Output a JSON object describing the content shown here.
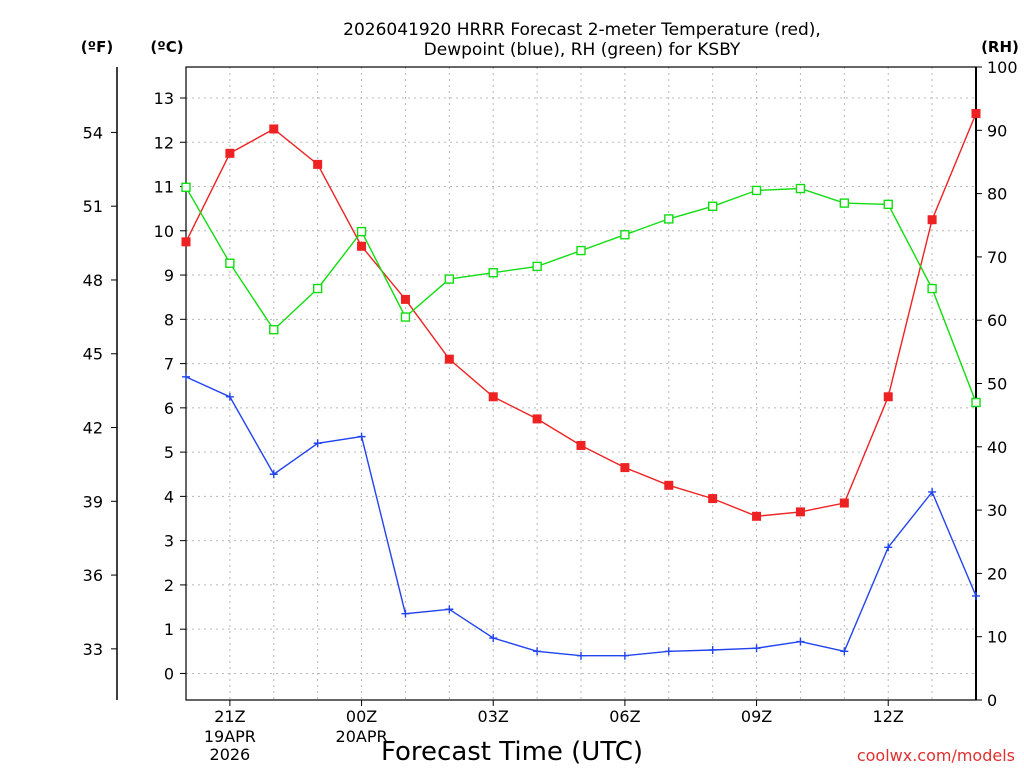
{
  "chart_data": {
    "type": "line",
    "title": [
      "2026041920 HRRR Forecast 2-meter Temperature (red),",
      "Dewpoint (blue), RH (green) for KSBY"
    ],
    "xlabel": "Forecast Time (UTC)",
    "credit": "coolwx.com/models",
    "units": {
      "fahrenheit": "(ºF)",
      "celsius": "(ºC)",
      "rh": "(RH)"
    },
    "x_range": [
      20,
      38
    ],
    "x_ticks": [
      {
        "x": 21,
        "label": "21Z",
        "sub": [
          "19APR",
          "2026"
        ]
      },
      {
        "x": 24,
        "label": "00Z",
        "sub": [
          "20APR"
        ]
      },
      {
        "x": 27,
        "label": "03Z",
        "sub": []
      },
      {
        "x": 30,
        "label": "06Z",
        "sub": []
      },
      {
        "x": 33,
        "label": "09Z",
        "sub": []
      },
      {
        "x": 36,
        "label": "12Z",
        "sub": []
      }
    ],
    "celsius_axis": {
      "range": [
        -0.6,
        13.7
      ],
      "ticks": [
        "0",
        "1",
        "2",
        "3",
        "4",
        "5",
        "6",
        "7",
        "8",
        "9",
        "10",
        "11",
        "12",
        "13"
      ]
    },
    "fahrenheit_axis": {
      "ticks": [
        "33",
        "36",
        "39",
        "42",
        "45",
        "48",
        "51",
        "54"
      ]
    },
    "rh_axis": {
      "range": [
        0,
        100
      ],
      "ticks": [
        "0",
        "10",
        "20",
        "30",
        "40",
        "50",
        "60",
        "70",
        "80",
        "90",
        "100"
      ]
    },
    "x": [
      20,
      21,
      22,
      23,
      24,
      25,
      26,
      27,
      28,
      29,
      30,
      31,
      32,
      33,
      34,
      35,
      36,
      37,
      38
    ],
    "series": [
      {
        "name": "Temperature",
        "axis": "celsius",
        "color": "#ee2222",
        "marker": "filled-square",
        "values": [
          9.75,
          11.75,
          12.3,
          11.5,
          9.65,
          8.45,
          7.1,
          6.25,
          5.75,
          5.15,
          4.65,
          4.25,
          3.95,
          3.55,
          3.65,
          3.85,
          6.25,
          10.25,
          12.65
        ]
      },
      {
        "name": "Dewpoint",
        "axis": "celsius",
        "color": "#2244ee",
        "marker": "plus",
        "values": [
          6.7,
          6.25,
          4.5,
          5.2,
          5.35,
          1.35,
          1.45,
          0.8,
          0.5,
          0.4,
          0.4,
          0.5,
          0.53,
          0.57,
          0.72,
          0.5,
          2.85,
          4.1,
          1.75
        ]
      },
      {
        "name": "RH",
        "axis": "rh",
        "color": "#11dd11",
        "marker": "open-square",
        "values": [
          81,
          69,
          58.5,
          65,
          74,
          60.5,
          66.5,
          67.5,
          68.5,
          71,
          73.5,
          76,
          78,
          80.5,
          80.8,
          78.5,
          78.3,
          65,
          47
        ]
      }
    ]
  }
}
